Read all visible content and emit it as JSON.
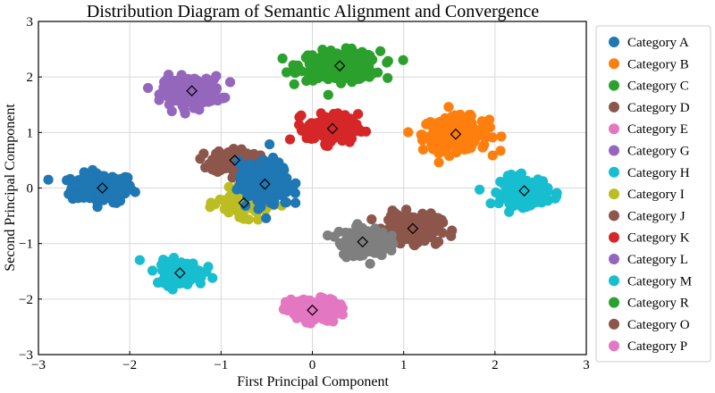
{
  "chart_data": {
    "type": "scatter",
    "title": "Distribution Diagram of Semantic Alignment and Convergence",
    "xlabel": "First Principal Component",
    "ylabel": "Second Principal Component",
    "xlim": [
      -3,
      3
    ],
    "ylim": [
      -3,
      3
    ],
    "xticks": [
      "−3",
      "−2",
      "−1",
      "0",
      "1",
      "2",
      "3"
    ],
    "yticks": [
      "−3",
      "−2",
      "−1",
      "0",
      "1",
      "2",
      "3"
    ],
    "grid": true,
    "legend_position": "right outside",
    "centroid_marker": "diamond",
    "series": [
      {
        "name": "Category A",
        "color": "#1f77b4",
        "center": [
          -2.3,
          0.0
        ],
        "spread": [
          0.17,
          0.13
        ]
      },
      {
        "name": "Category B",
        "color": "#ff7f0e",
        "center": [
          1.57,
          0.97
        ],
        "spread": [
          0.18,
          0.15
        ]
      },
      {
        "name": "Category C",
        "color": "#2ca02c",
        "center": [
          0.3,
          2.2
        ],
        "spread": [
          0.22,
          0.13
        ]
      },
      {
        "name": "Category D",
        "color": "#8c564b",
        "center": [
          -0.85,
          0.5
        ],
        "spread": [
          0.13,
          0.11
        ]
      },
      {
        "name": "Category E",
        "color": "#e377c2",
        "center": [
          0.0,
          -2.2
        ],
        "spread": [
          0.14,
          0.1
        ]
      },
      {
        "name": "Category G",
        "color": "#9467bd",
        "center": [
          -1.32,
          1.75
        ],
        "spread": [
          0.16,
          0.13
        ]
      },
      {
        "name": "Category H",
        "color": "#17becf",
        "center": [
          2.32,
          -0.05
        ],
        "spread": [
          0.13,
          0.13
        ]
      },
      {
        "name": "Category I",
        "color": "#bcbd22",
        "center": [
          -0.75,
          -0.27
        ],
        "spread": [
          0.14,
          0.12
        ]
      },
      {
        "name": "Category J",
        "color": "#8c564b",
        "center": [
          1.1,
          -0.73
        ],
        "spread": [
          0.15,
          0.13
        ]
      },
      {
        "name": "Category K",
        "color": "#d62728",
        "center": [
          0.22,
          1.07
        ],
        "spread": [
          0.14,
          0.13
        ]
      },
      {
        "name": "Category L",
        "color": "#9467bd",
        "center": [
          -1.32,
          1.75
        ],
        "spread": [
          0.1,
          0.08
        ]
      },
      {
        "name": "Category M",
        "color": "#17becf",
        "center": [
          -1.45,
          -1.53
        ],
        "spread": [
          0.13,
          0.11
        ]
      },
      {
        "name": "Category R",
        "color": "#2ca02c",
        "center": [
          0.3,
          2.2
        ],
        "spread": [
          0.12,
          0.08
        ]
      },
      {
        "name": "Category O",
        "color": "#8c564b",
        "center": [
          1.1,
          -0.73
        ],
        "spread": [
          0.1,
          0.08
        ]
      },
      {
        "name": "Category P",
        "color": "#e377c2",
        "center": [
          0.0,
          -2.2
        ],
        "spread": [
          0.1,
          0.08
        ]
      },
      {
        "name": "",
        "color": "#1f77b4",
        "center": [
          -0.52,
          0.07
        ],
        "spread": [
          0.14,
          0.2
        ]
      },
      {
        "name": "",
        "color": "#7f7f7f",
        "center": [
          0.55,
          -0.97
        ],
        "spread": [
          0.13,
          0.13
        ]
      }
    ]
  }
}
